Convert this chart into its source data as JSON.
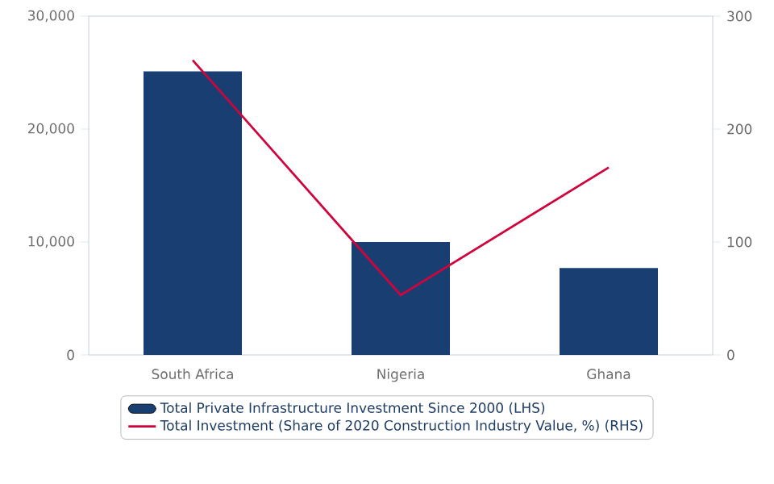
{
  "chart_data": {
    "type": "bar",
    "categories": [
      "South Africa",
      "Nigeria",
      "Ghana"
    ],
    "series": [
      {
        "name": "Total Private Infrastructure Investment Since 2000 (LHS)",
        "color": "#193f72",
        "values": [
          25100,
          10000,
          7700
        ]
      },
      {
        "name": "Total Investment (Share of 2020 Construction Industry Value, %) (RHS)",
        "type": "line",
        "axis": "y2",
        "color": "#d0043c",
        "values": [
          261,
          53,
          166
        ]
      }
    ],
    "ylim": [
      0,
      30000
    ],
    "yticks": [
      {
        "value": 0,
        "label": "0"
      },
      {
        "value": 10000,
        "label": "10,000"
      },
      {
        "value": 20000,
        "label": "20,000"
      },
      {
        "value": 30000,
        "label": "30,000"
      }
    ],
    "y2lim": [
      0,
      300
    ],
    "y2ticks": [
      0,
      100,
      200,
      300
    ],
    "legend": "bottom",
    "marker": "none"
  }
}
